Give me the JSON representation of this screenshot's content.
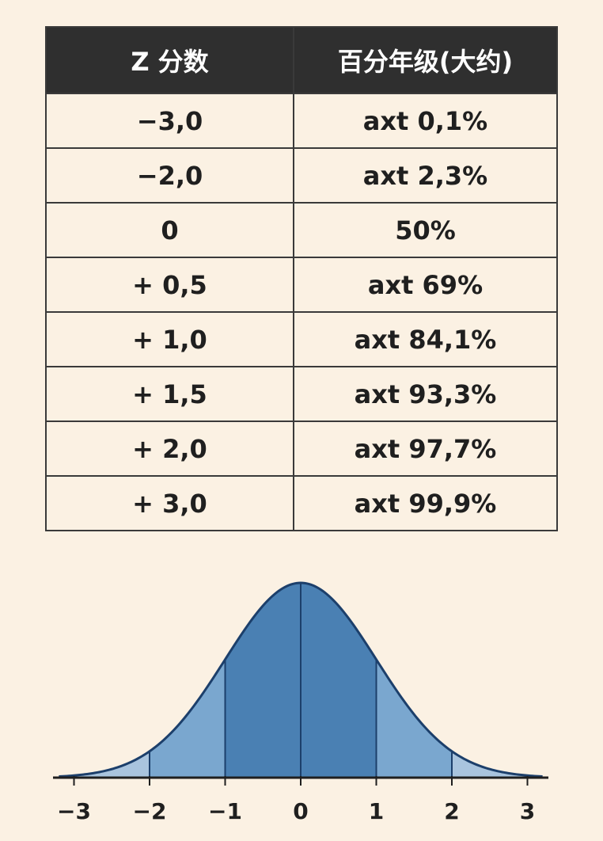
{
  "table": {
    "headers": [
      "Z 分数",
      "百分年级(大约)"
    ],
    "rows": [
      {
        "z": "−3,0",
        "pct": "axt 0,1%"
      },
      {
        "z": "−2,0",
        "pct": "axt 2,3%"
      },
      {
        "z": "0",
        "pct": "50%"
      },
      {
        "z": "+ 0,5",
        "pct": "axt 69%"
      },
      {
        "z": "+ 1,0",
        "pct": "axt 84,1%"
      },
      {
        "z": "+ 1,5",
        "pct": "axt 93,3%"
      },
      {
        "z": "+ 2,0",
        "pct": "axt 97,7%"
      },
      {
        "z": "+ 3,0",
        "pct": "axt 99,9%"
      }
    ]
  },
  "chart_data": {
    "type": "area",
    "curve": "standard normal density",
    "x_ticks": [
      -3,
      -2,
      -1,
      0,
      1,
      2,
      3
    ],
    "tick_labels": [
      "−3",
      "−2",
      "−1",
      "0",
      "1",
      "2",
      "3"
    ],
    "xlim": [
      -3.2,
      3.2
    ],
    "bands": [
      {
        "from": -3.2,
        "to": -2,
        "color": "#a9c4de"
      },
      {
        "from": -2,
        "to": -1,
        "color": "#7aa7cf"
      },
      {
        "from": -1,
        "to": 1,
        "color": "#4a80b3"
      },
      {
        "from": 1,
        "to": 2,
        "color": "#7aa7cf"
      },
      {
        "from": 2,
        "to": 3.2,
        "color": "#a9c4de"
      }
    ],
    "stroke_color": "#1c3f6b",
    "axis_color": "#1f1f1f"
  }
}
